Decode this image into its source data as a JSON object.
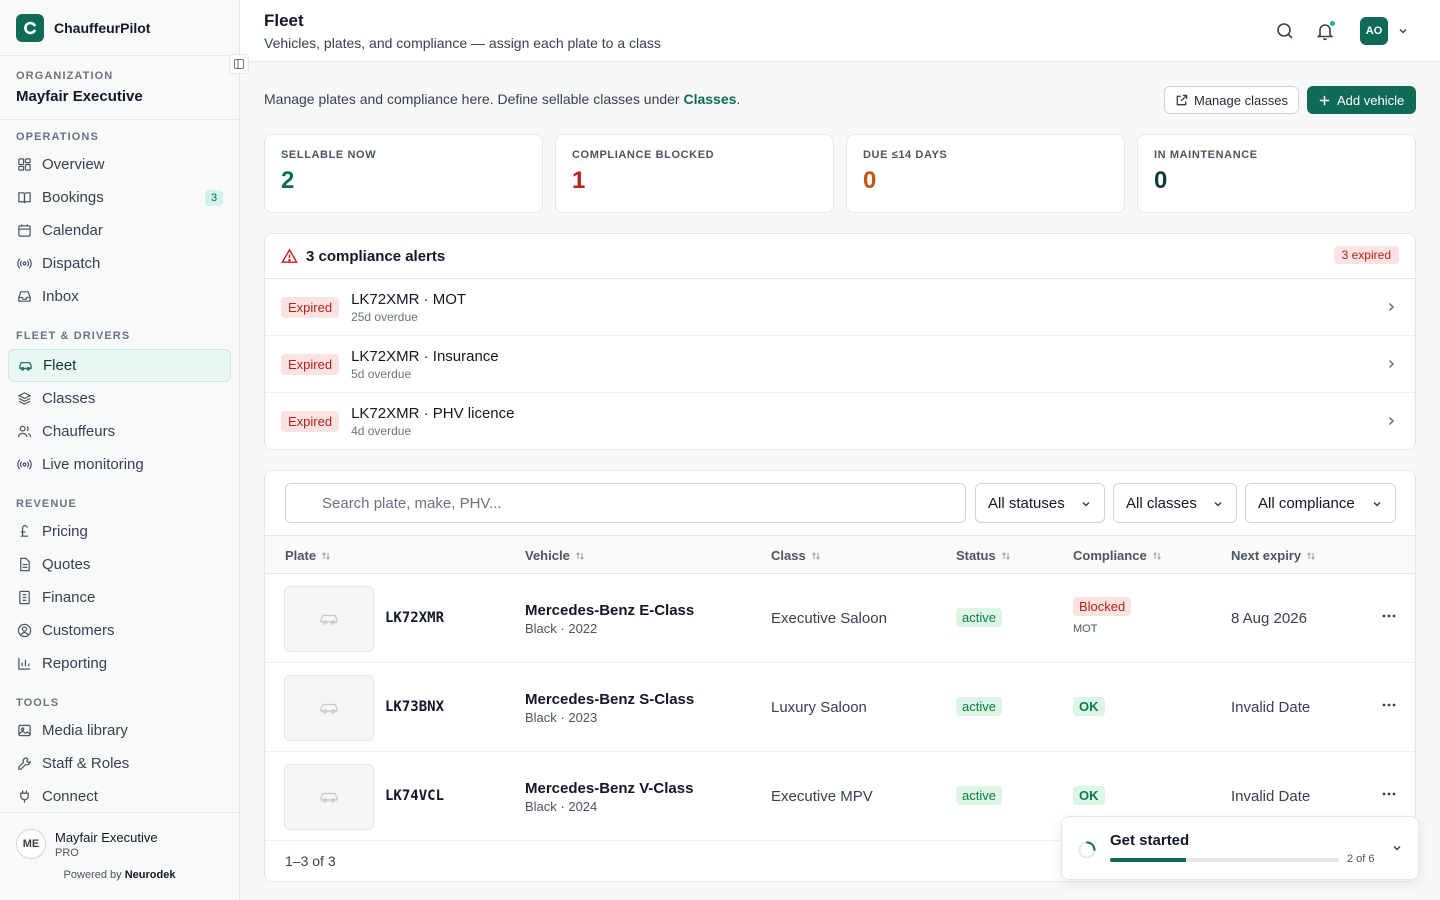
{
  "app": {
    "name": "ChauffeurPilot",
    "logo_letter": "C"
  },
  "organization": {
    "label": "ORGANIZATION",
    "name": "Mayfair Executive"
  },
  "sidebar": {
    "sections": [
      {
        "label": "OPERATIONS",
        "items": [
          {
            "label": "Overview",
            "icon": "grid-icon"
          },
          {
            "label": "Bookings",
            "icon": "book-icon",
            "badge": "3"
          },
          {
            "label": "Calendar",
            "icon": "calendar-icon"
          },
          {
            "label": "Dispatch",
            "icon": "radio-icon"
          },
          {
            "label": "Inbox",
            "icon": "inbox-icon"
          }
        ]
      },
      {
        "label": "FLEET & DRIVERS",
        "items": [
          {
            "label": "Fleet",
            "icon": "car-icon",
            "active": true
          },
          {
            "label": "Classes",
            "icon": "layers-icon"
          },
          {
            "label": "Chauffeurs",
            "icon": "users-icon"
          },
          {
            "label": "Live monitoring",
            "icon": "broadcast-icon"
          }
        ]
      },
      {
        "label": "REVENUE",
        "items": [
          {
            "label": "Pricing",
            "icon": "pound-icon"
          },
          {
            "label": "Quotes",
            "icon": "file-icon"
          },
          {
            "label": "Finance",
            "icon": "ledger-icon"
          },
          {
            "label": "Customers",
            "icon": "user-circle-icon"
          },
          {
            "label": "Reporting",
            "icon": "bar-chart-icon"
          }
        ]
      },
      {
        "label": "TOOLS",
        "items": [
          {
            "label": "Media library",
            "icon": "image-icon"
          },
          {
            "label": "Staff & Roles",
            "icon": "wrench-icon"
          },
          {
            "label": "Connect",
            "icon": "plug-icon"
          }
        ]
      }
    ],
    "footer": {
      "initials": "ME",
      "name": "Mayfair Executive",
      "plan": "PRO",
      "powered_prefix": "Powered by",
      "powered_brand": "Neurodek"
    }
  },
  "header": {
    "title": "Fleet",
    "subtitle": "Vehicles, plates, and compliance — assign each plate to a class",
    "avatar_initials": "AO"
  },
  "main": {
    "intro_text": "Manage plates and compliance here. Define sellable classes under",
    "intro_link": "Classes",
    "intro_end": ".",
    "manage_classes_label": "Manage classes",
    "add_vehicle_label": "Add vehicle"
  },
  "stats": [
    {
      "label": "SELLABLE NOW",
      "value": "2",
      "color": "#0f6b57"
    },
    {
      "label": "COMPLIANCE BLOCKED",
      "value": "1",
      "color": "#b42318"
    },
    {
      "label": "DUE ≤14 DAYS",
      "value": "0",
      "color": "#c2550d"
    },
    {
      "label": "IN MAINTENANCE",
      "value": "0",
      "color": "#0f3d33"
    }
  ],
  "alerts": {
    "title": "3 compliance alerts",
    "badge": "3 expired",
    "items": [
      {
        "status": "Expired",
        "title": "LK72XMR · MOT",
        "sub": "25d overdue"
      },
      {
        "status": "Expired",
        "title": "LK72XMR · Insurance",
        "sub": "5d overdue"
      },
      {
        "status": "Expired",
        "title": "LK72XMR · PHV licence",
        "sub": "4d overdue"
      }
    ]
  },
  "filters": {
    "search_placeholder": "Search plate, make, PHV...",
    "status": "All statuses",
    "classes": "All classes",
    "compliance": "All compliance"
  },
  "table": {
    "columns": [
      "Plate",
      "Vehicle",
      "Class",
      "Status",
      "Compliance",
      "Next expiry"
    ],
    "rows": [
      {
        "plate": "LK72XMR",
        "vehicle": "Mercedes-Benz E-Class",
        "vehicle_sub": "Black · 2022",
        "class": "Executive Saloon",
        "status": "active",
        "compliance": "Blocked",
        "compliance_sub": "MOT",
        "next_expiry": "8 Aug 2026"
      },
      {
        "plate": "LK73BNX",
        "vehicle": "Mercedes-Benz S-Class",
        "vehicle_sub": "Black · 2023",
        "class": "Luxury Saloon",
        "status": "active",
        "compliance": "OK",
        "next_expiry": "Invalid Date"
      },
      {
        "plate": "LK74VCL",
        "vehicle": "Mercedes-Benz V-Class",
        "vehicle_sub": "Black · 2024",
        "class": "Executive MPV",
        "status": "active",
        "compliance": "OK",
        "next_expiry": "Invalid Date"
      }
    ],
    "footer": "1–3 of 3"
  },
  "get_started": {
    "title": "Get started",
    "count": "2 of 6",
    "progress": 0.333
  }
}
